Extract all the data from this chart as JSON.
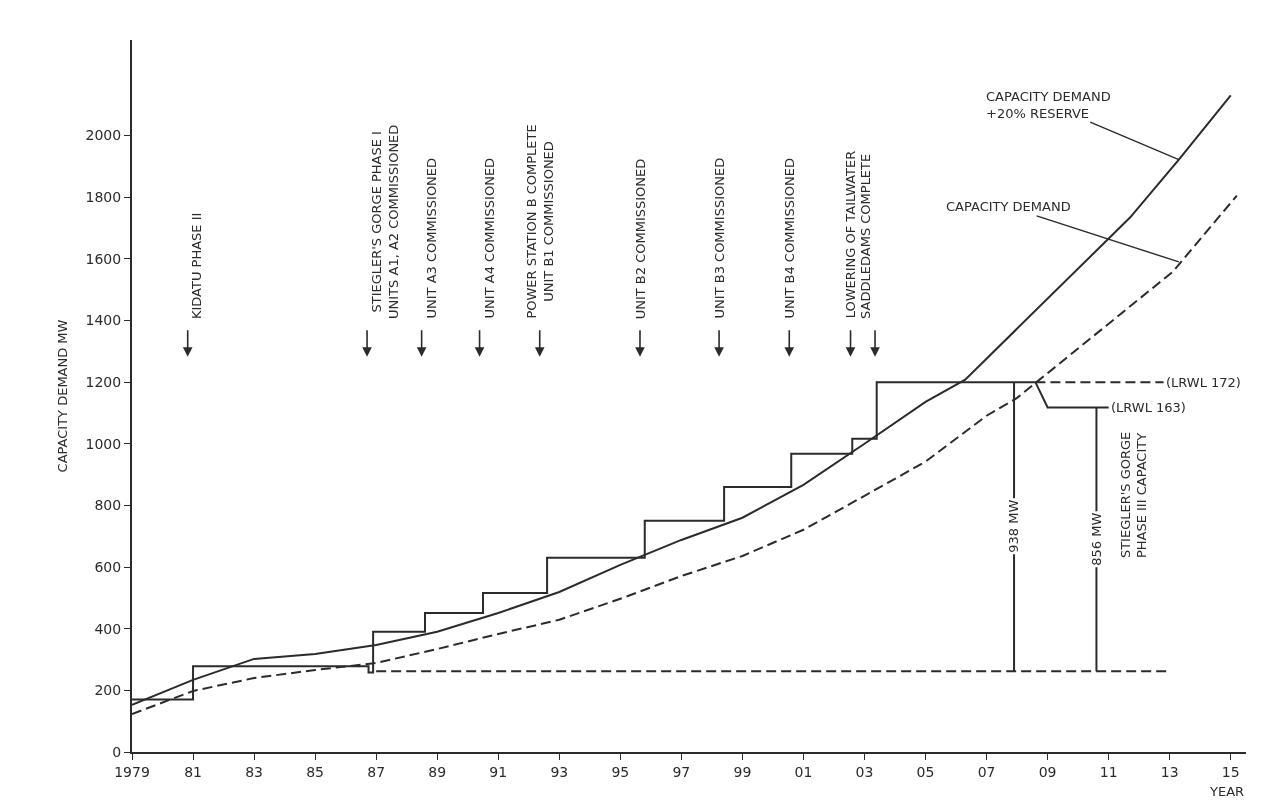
{
  "chart_data": {
    "type": "line",
    "xlabel": "YEAR",
    "ylabel": "CAPACITY DEMAND MW",
    "xlim": [
      1979,
      2015.5
    ],
    "ylim": [
      0,
      2310
    ],
    "xticks": [
      {
        "value": 1979,
        "label": "1979"
      },
      {
        "value": 1981,
        "label": "81"
      },
      {
        "value": 1983,
        "label": "83"
      },
      {
        "value": 1985,
        "label": "85"
      },
      {
        "value": 1987,
        "label": "87"
      },
      {
        "value": 1989,
        "label": "89"
      },
      {
        "value": 1991,
        "label": "91"
      },
      {
        "value": 1993,
        "label": "93"
      },
      {
        "value": 1995,
        "label": "95"
      },
      {
        "value": 1997,
        "label": "97"
      },
      {
        "value": 1999,
        "label": "99"
      },
      {
        "value": 2001,
        "label": "01"
      },
      {
        "value": 2003,
        "label": "03"
      },
      {
        "value": 2005,
        "label": "05"
      },
      {
        "value": 2007,
        "label": "07"
      },
      {
        "value": 2009,
        "label": "09"
      },
      {
        "value": 2011,
        "label": "11"
      },
      {
        "value": 2013,
        "label": "13"
      },
      {
        "value": 2015,
        "label": "15"
      }
    ],
    "yticks": [
      0,
      200,
      400,
      600,
      800,
      1000,
      1200,
      1400,
      1600,
      1800,
      2000
    ],
    "marker": "none",
    "series": [
      {
        "color": "#2b2b2b",
        "line_style": "solid",
        "x": [
          1979,
          1981,
          1983,
          1985,
          1987,
          1989,
          1991,
          1993,
          1995,
          1997,
          1999,
          2001,
          2003,
          2005,
          2006.3,
          2011.7,
          2013.3,
          2015
        ],
        "values": [
          153,
          234,
          302,
          318,
          347,
          390,
          451,
          519,
          607,
          688,
          760,
          867,
          1000,
          1136,
          1208,
          1734,
          1922,
          2130
        ]
      },
      {
        "color": "#2b2b2b",
        "line_style": "dashed",
        "x": [
          1979,
          1981,
          1983,
          1985,
          1987,
          1989,
          1991,
          1993,
          1995,
          1997,
          1999,
          2001,
          2003,
          2005,
          2007,
          2008,
          2013.1,
          2015.2
        ],
        "values": [
          123,
          198,
          240,
          266,
          289,
          334,
          383,
          429,
          497,
          571,
          636,
          721,
          831,
          942,
          1091,
          1149,
          1558,
          1805
        ]
      },
      {
        "color": "#2b2b2b",
        "line_style": "solid",
        "x": [
          1979,
          1981,
          1981,
          1986.75,
          1986.75,
          1986.9,
          1986.9,
          1988.6,
          1988.6,
          1990.5,
          1990.5,
          1992.6,
          1992.6,
          1995.8,
          1995.8,
          1998.4,
          1998.4,
          2000.6,
          2000.6,
          2002.6,
          2002.6,
          2003.4,
          2003.4,
          2008.6,
          2009.0,
          2011.0
        ],
        "values": [
          170,
          170,
          278,
          278,
          258,
          258,
          390,
          390,
          451,
          451,
          516,
          516,
          630,
          630,
          750,
          750,
          860,
          860,
          968,
          968,
          1016,
          1016,
          1200,
          1200,
          1118,
          1118
        ]
      },
      {
        "color": "#2b2b2b",
        "line_style": "dashed",
        "x": [
          2008.6,
          2012.8
        ],
        "values": [
          1200,
          1200
        ]
      },
      {
        "color": "#2b2b2b",
        "line_style": "dashed",
        "x": [
          1987,
          2012.9
        ],
        "values": [
          262,
          262
        ]
      },
      {
        "color": "#2b2b2b",
        "line_style": "solid",
        "x": [
          2007.9,
          2007.9
        ],
        "values": [
          262,
          1200
        ]
      },
      {
        "color": "#2b2b2b",
        "line_style": "solid",
        "x": [
          2010.6,
          2010.6
        ],
        "values": [
          262,
          1118
        ]
      }
    ],
    "annotations": [
      "KIDATU PHASE II",
      "STIEGLER'S GORGE PHASE I\nUNITS A1, A2 COMMISSIONED",
      "UNIT A3 COMMISSIONED",
      "UNIT A4 COMMISSIONED",
      "POWER STATION B COMPLETE\nUNIT B1 COMMISSIONED",
      "UNIT B2 COMMISSIONED",
      "UNIT B3 COMMISSIONED",
      "UNIT B4 COMMISSIONED",
      "LOWERING OF TAILWATER",
      "SADDLEDAMS COMPLETE",
      {
        "text": "CAPACITY DEMAND\n+20% RESERVE",
        "x": 2013.3,
        "y": 1922
      },
      {
        "text": "CAPACITY DEMAND",
        "x": 2013.3,
        "y": 1590
      },
      {
        "text": "(LRWL 172)",
        "x": 2012.8,
        "y": 1200
      },
      {
        "text": "(LRWL 163)",
        "x": 2011.0,
        "y": 1118
      },
      {
        "text": "938 MW",
        "x": 2007.9,
        "y": 731
      },
      {
        "text": "856 MW",
        "x": 2010.6,
        "y": 690
      },
      "STIEGLER'S GORGE\nPHASE III CAPACITY"
    ]
  }
}
